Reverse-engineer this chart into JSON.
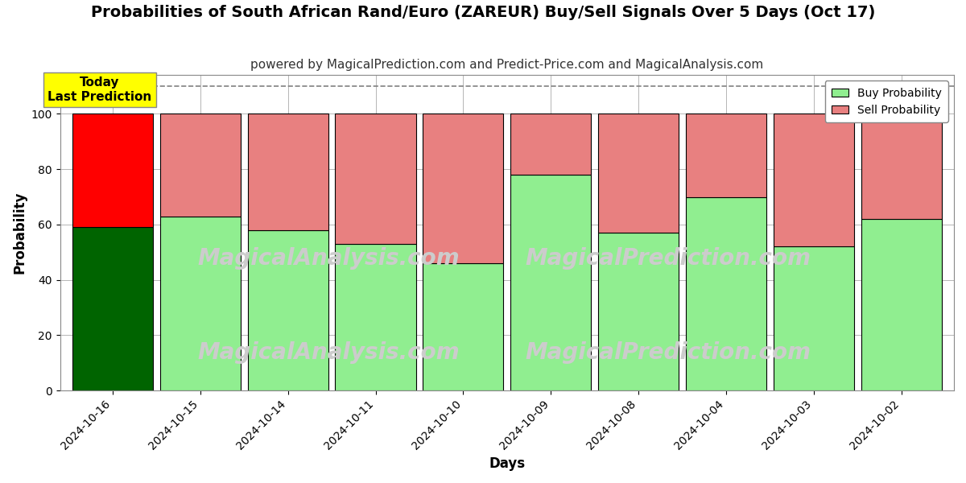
{
  "title": "Probabilities of South African Rand/Euro (ZAREUR) Buy/Sell Signals Over 5 Days (Oct 17)",
  "subtitle": "powered by MagicalPrediction.com and Predict-Price.com and MagicalAnalysis.com",
  "xlabel": "Days",
  "ylabel": "Probability",
  "categories": [
    "2024-10-16",
    "2024-10-15",
    "2024-10-14",
    "2024-10-11",
    "2024-10-10",
    "2024-10-09",
    "2024-10-08",
    "2024-10-04",
    "2024-10-03",
    "2024-10-02"
  ],
  "buy_values": [
    59,
    63,
    58,
    53,
    46,
    78,
    57,
    70,
    52,
    62
  ],
  "sell_values": [
    41,
    37,
    42,
    47,
    54,
    22,
    43,
    30,
    48,
    38
  ],
  "buy_colors_normal": "#90EE90",
  "sell_colors_normal": "#E88080",
  "buy_color_today": "#006400",
  "sell_color_today": "#FF0000",
  "bar_edge_color": "#000000",
  "ylim_max": 114,
  "yticks": [
    0,
    20,
    40,
    60,
    80,
    100
  ],
  "dashed_line_y": 110,
  "legend_buy_label": "Buy Probability",
  "legend_sell_label": "Sell Probability",
  "annotation_text": "Today\nLast Prediction",
  "annotation_bg_color": "#FFFF00",
  "watermark_text1": "MagicalAnalysis.com",
  "watermark_text2": "MagicalPrediction.com",
  "watermark_color": "#cccccc",
  "grid_color": "#aaaaaa",
  "background_color": "#ffffff",
  "title_fontsize": 14,
  "subtitle_fontsize": 11,
  "axis_label_fontsize": 12,
  "tick_fontsize": 10,
  "bar_width": 0.92
}
